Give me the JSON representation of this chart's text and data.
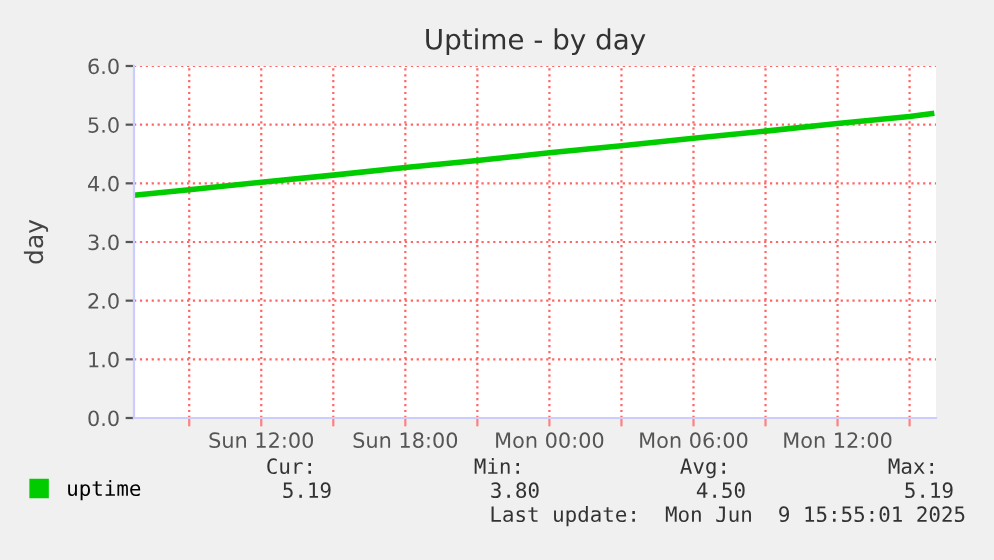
{
  "chart_data": {
    "type": "line",
    "title": "Uptime - by day",
    "ylabel": "day",
    "x": [
      "2025-06-08T06:48",
      "2025-06-08T09:00",
      "2025-06-08T12:00",
      "2025-06-08T15:00",
      "2025-06-08T18:00",
      "2025-06-08T21:00",
      "2025-06-09T00:00",
      "2025-06-09T03:00",
      "2025-06-09T06:00",
      "2025-06-09T09:00",
      "2025-06-09T12:00",
      "2025-06-09T15:00",
      "2025-06-09T15:55"
    ],
    "series": [
      {
        "name": "uptime",
        "color": "#00cc00",
        "values": [
          3.8,
          3.89,
          4.02,
          4.14,
          4.27,
          4.39,
          4.52,
          4.64,
          4.77,
          4.89,
          5.02,
          5.14,
          5.19
        ]
      }
    ],
    "xlim": [
      "2025-06-08T06:42",
      "2025-06-09T16:06"
    ],
    "xticks": [
      {
        "value": "2025-06-08T09:00",
        "label": null
      },
      {
        "value": "2025-06-08T12:00",
        "label": "Sun 12:00"
      },
      {
        "value": "2025-06-08T15:00",
        "label": null
      },
      {
        "value": "2025-06-08T18:00",
        "label": "Sun 18:00"
      },
      {
        "value": "2025-06-08T21:00",
        "label": null
      },
      {
        "value": "2025-06-09T00:00",
        "label": "Mon 00:00"
      },
      {
        "value": "2025-06-09T03:00",
        "label": null
      },
      {
        "value": "2025-06-09T06:00",
        "label": "Mon 06:00"
      },
      {
        "value": "2025-06-09T09:00",
        "label": null
      },
      {
        "value": "2025-06-09T12:00",
        "label": "Mon 12:00"
      },
      {
        "value": "2025-06-09T15:00",
        "label": null
      }
    ],
    "ylim": [
      0,
      6
    ],
    "yticks": [
      {
        "value": 0,
        "label": "0.0"
      },
      {
        "value": 1,
        "label": "1.0"
      },
      {
        "value": 2,
        "label": "2.0"
      },
      {
        "value": 3,
        "label": "3.0"
      },
      {
        "value": 4,
        "label": "4.0"
      },
      {
        "value": 5,
        "label": "5.0"
      },
      {
        "value": 6,
        "label": "6.0"
      }
    ],
    "grid": true,
    "legend": "bottom left",
    "marker": "none",
    "line_style": "solid",
    "annotations": [
      "Cur:",
      "Min:",
      "Avg:",
      "Max:",
      "5.19",
      "3.80",
      "4.50",
      "5.19",
      "Last update:  Mon Jun  9 15:55:01 2025"
    ]
  }
}
